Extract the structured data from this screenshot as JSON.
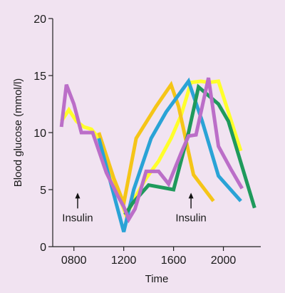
{
  "chart_data": {
    "type": "line",
    "title": "",
    "xlabel": "Time",
    "ylabel": "Blood glucose (mmol/l)",
    "xlim": [
      630,
      2300
    ],
    "ylim": [
      0,
      20
    ],
    "x_ticks": [
      800,
      1200,
      1600,
      2000
    ],
    "x_tick_labels": [
      "0800",
      "1200",
      "1600",
      "2000"
    ],
    "y_ticks": [
      0,
      5,
      10,
      15,
      20
    ],
    "y_tick_labels": [
      "0",
      "5",
      "10",
      "15",
      "20"
    ],
    "grid": false,
    "legend": "none",
    "series": [
      {
        "color": "#ffff2b",
        "points": [
          [
            700,
            11
          ],
          [
            760,
            12
          ],
          [
            820,
            11
          ],
          [
            880,
            10.5
          ],
          [
            940,
            10.3
          ],
          [
            1000,
            9.5
          ],
          [
            1060,
            7.5
          ],
          [
            1110,
            6
          ],
          [
            1160,
            4.5
          ],
          [
            1220,
            2.7
          ],
          [
            1290,
            4.3
          ],
          [
            1380,
            6
          ],
          [
            1480,
            7.5
          ],
          [
            1580,
            9.5
          ],
          [
            1660,
            11.5
          ],
          [
            1740,
            14.4
          ],
          [
            1820,
            14.5
          ],
          [
            1880,
            14.4
          ],
          [
            1960,
            14.5
          ],
          [
            2140,
            8.4
          ]
        ]
      },
      {
        "color": "#f5c518",
        "points": [
          [
            1000,
            10
          ],
          [
            1120,
            6
          ],
          [
            1200,
            3.8
          ],
          [
            1300,
            9.5
          ],
          [
            1460,
            12.3
          ],
          [
            1580,
            14.2
          ],
          [
            1640,
            12.3
          ],
          [
            1760,
            6.3
          ],
          [
            1920,
            4
          ]
        ]
      },
      {
        "color": "#2aa3d6",
        "points": [
          [
            1000,
            9.5
          ],
          [
            1200,
            1.3
          ],
          [
            1280,
            5
          ],
          [
            1420,
            9.5
          ],
          [
            1540,
            11.8
          ],
          [
            1720,
            14.5
          ],
          [
            1830,
            11
          ],
          [
            1960,
            6.2
          ],
          [
            2140,
            4
          ]
        ]
      },
      {
        "color": "#1f9a5c",
        "points": [
          [
            1210,
            2.8
          ],
          [
            1270,
            3.8
          ],
          [
            1400,
            5.4
          ],
          [
            1600,
            5
          ],
          [
            1720,
            10
          ],
          [
            1800,
            14
          ],
          [
            1960,
            12.5
          ],
          [
            2040,
            11
          ],
          [
            2250,
            3.4
          ]
        ]
      },
      {
        "color": "#bb6ec8",
        "points": [
          [
            700,
            10.5
          ],
          [
            740,
            14.2
          ],
          [
            800,
            12.5
          ],
          [
            860,
            10
          ],
          [
            950,
            10
          ],
          [
            1060,
            6.5
          ],
          [
            1150,
            4.5
          ],
          [
            1200,
            3.5
          ],
          [
            1240,
            2.4
          ],
          [
            1290,
            3.3
          ],
          [
            1380,
            6.6
          ],
          [
            1480,
            6.6
          ],
          [
            1560,
            5.5
          ],
          [
            1660,
            8.2
          ],
          [
            1720,
            9.7
          ],
          [
            1780,
            9.8
          ],
          [
            1880,
            14.8
          ],
          [
            1960,
            8.8
          ],
          [
            2060,
            6.8
          ],
          [
            2150,
            5.1
          ]
        ]
      }
    ],
    "annotations": [
      {
        "text": "Insulin",
        "at_time": 830,
        "at_value": 4.6
      },
      {
        "text": "Insulin",
        "at_time": 1740,
        "at_value": 4.6
      }
    ]
  }
}
